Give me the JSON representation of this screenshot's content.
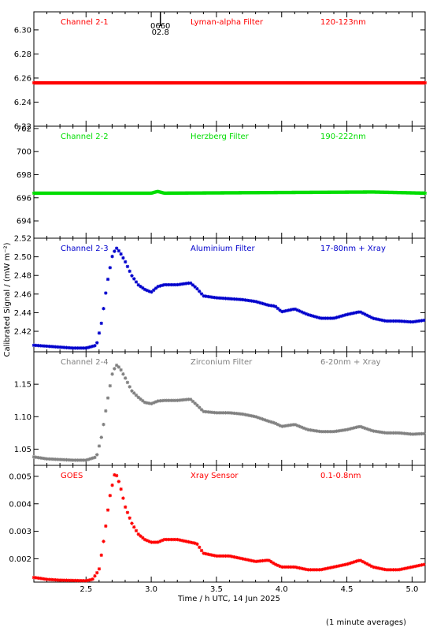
{
  "chart_data": {
    "type": "scatter",
    "marker": "asterisk",
    "xlabel": "Time / h UTC, 14 Jun 2025",
    "ylabel": "Calibrated Signal / (mW m⁻²)",
    "footnote": "(1 minute averages)",
    "xlim": [
      2.1,
      5.1
    ],
    "xticks": [
      "2.5",
      "3.0",
      "3.5",
      "4.0",
      "4.5",
      "5.0"
    ],
    "annotation": {
      "x": 3.07,
      "lines": [
        "0660",
        "02.8"
      ]
    },
    "panels": [
      {
        "channel": "Channel 2-1",
        "filter": "Lyman-alpha Filter",
        "band": "120-123nm",
        "color": "#ff0000",
        "ylim": [
          6.22,
          6.315
        ],
        "yticks": [
          "6.22",
          "6.24",
          "6.26",
          "6.28",
          "6.30"
        ],
        "series": [
          {
            "x": [
              2.1,
              5.1
            ],
            "y": [
              6.256,
              6.256
            ]
          }
        ]
      },
      {
        "channel": "Channel 2-2",
        "filter": "Herzberg Filter",
        "band": "190-222nm",
        "color": "#00dd00",
        "ylim": [
          692.5,
          702.2
        ],
        "yticks": [
          "694",
          "696",
          "698",
          "700",
          "702"
        ],
        "series": [
          {
            "x": [
              2.1,
              3.0,
              3.05,
              3.1,
              4.7,
              5.1
            ],
            "y": [
              696.4,
              696.4,
              696.55,
              696.4,
              696.5,
              696.4
            ]
          }
        ]
      },
      {
        "channel": "Channel 2-3",
        "filter": "Aluminium Filter",
        "band": "17-80nm + Xray",
        "color": "#0000cc",
        "ylim": [
          2.398,
          2.52
        ],
        "yticks": [
          "2.42",
          "2.44",
          "2.46",
          "2.48",
          "2.50",
          "2.52"
        ],
        "series": [
          {
            "x": [
              2.1,
              2.2,
              2.3,
              2.4,
              2.5,
              2.58,
              2.62,
              2.66,
              2.7,
              2.73,
              2.76,
              2.8,
              2.85,
              2.9,
              2.95,
              3.0,
              3.05,
              3.1,
              3.2,
              3.3,
              3.35,
              3.4,
              3.5,
              3.6,
              3.7,
              3.8,
              3.9,
              3.95,
              4.0,
              4.1,
              4.2,
              4.3,
              4.4,
              4.5,
              4.6,
              4.7,
              4.8,
              4.9,
              5.0,
              5.1
            ],
            "y": [
              2.405,
              2.404,
              2.403,
              2.402,
              2.402,
              2.405,
              2.43,
              2.47,
              2.5,
              2.51,
              2.505,
              2.495,
              2.48,
              2.47,
              2.465,
              2.462,
              2.468,
              2.47,
              2.47,
              2.472,
              2.466,
              2.458,
              2.456,
              2.455,
              2.454,
              2.452,
              2.448,
              2.447,
              2.441,
              2.444,
              2.438,
              2.434,
              2.434,
              2.438,
              2.441,
              2.434,
              2.431,
              2.431,
              2.43,
              2.432
            ]
          }
        ]
      },
      {
        "channel": "Channel 2-4",
        "filter": "Zirconium Filter",
        "band": "6-20nm + Xray",
        "color": "#808080",
        "ylim": [
          1.025,
          1.2
        ],
        "yticks": [
          "1.05",
          "1.10",
          "1.15"
        ],
        "series": [
          {
            "x": [
              2.1,
              2.2,
              2.3,
              2.4,
              2.5,
              2.58,
              2.62,
              2.66,
              2.7,
              2.73,
              2.76,
              2.8,
              2.85,
              2.9,
              2.95,
              3.0,
              3.05,
              3.1,
              3.2,
              3.3,
              3.35,
              3.4,
              3.5,
              3.6,
              3.7,
              3.8,
              3.9,
              3.95,
              4.0,
              4.1,
              4.2,
              4.3,
              4.4,
              4.5,
              4.6,
              4.7,
              4.8,
              4.9,
              5.0,
              5.1
            ],
            "y": [
              1.038,
              1.035,
              1.034,
              1.033,
              1.033,
              1.038,
              1.07,
              1.12,
              1.165,
              1.18,
              1.175,
              1.16,
              1.14,
              1.13,
              1.122,
              1.12,
              1.124,
              1.125,
              1.125,
              1.127,
              1.118,
              1.108,
              1.106,
              1.106,
              1.104,
              1.1,
              1.093,
              1.09,
              1.085,
              1.088,
              1.08,
              1.077,
              1.077,
              1.08,
              1.085,
              1.078,
              1.075,
              1.075,
              1.073,
              1.074
            ]
          }
        ]
      },
      {
        "channel": "GOES",
        "filter": "Xray Sensor",
        "band": "0.1-0.8nm",
        "color": "#ff0000",
        "ylim": [
          0.00115,
          0.0054
        ],
        "yticks": [
          "0.002",
          "0.003",
          "0.004",
          "0.005"
        ],
        "series": [
          {
            "x": [
              2.1,
              2.2,
              2.3,
              2.4,
              2.5,
              2.55,
              2.6,
              2.64,
              2.68,
              2.72,
              2.74,
              2.77,
              2.8,
              2.85,
              2.9,
              2.95,
              3.0,
              3.05,
              3.1,
              3.2,
              3.3,
              3.35,
              3.4,
              3.5,
              3.6,
              3.7,
              3.8,
              3.9,
              3.95,
              4.0,
              4.1,
              4.2,
              4.3,
              4.4,
              4.5,
              4.6,
              4.7,
              4.8,
              4.9,
              5.0,
              5.1
            ],
            "y": [
              0.00132,
              0.00125,
              0.00122,
              0.00121,
              0.0012,
              0.00125,
              0.0016,
              0.0028,
              0.0042,
              0.0051,
              0.005,
              0.0045,
              0.0039,
              0.0033,
              0.0029,
              0.0027,
              0.0026,
              0.0026,
              0.0027,
              0.0027,
              0.0026,
              0.00255,
              0.0022,
              0.0021,
              0.0021,
              0.002,
              0.0019,
              0.00195,
              0.0018,
              0.0017,
              0.0017,
              0.0016,
              0.0016,
              0.0017,
              0.0018,
              0.00195,
              0.0017,
              0.0016,
              0.0016,
              0.0017,
              0.0018
            ]
          }
        ]
      }
    ]
  }
}
